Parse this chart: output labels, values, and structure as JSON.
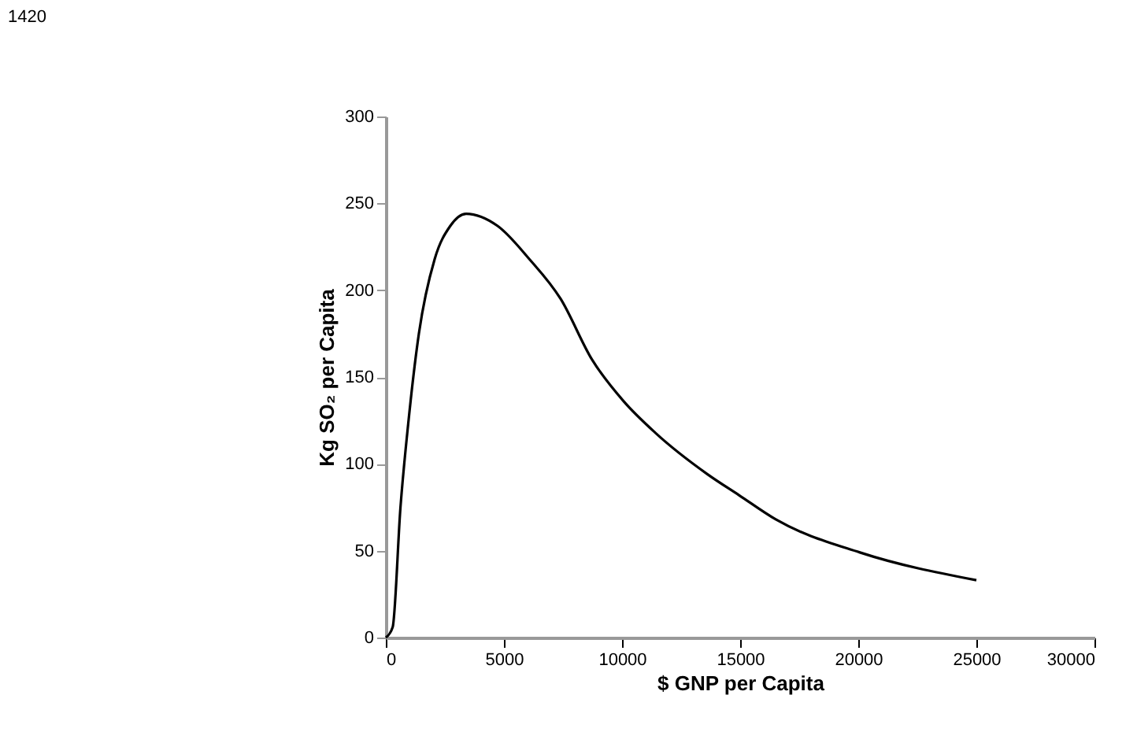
{
  "chart_data": {
    "type": "line",
    "xlabel": "$ GNP per Capita",
    "ylabel": "Kg SO₂ per Capita",
    "annotations": [
      "1420"
    ],
    "x": [
      0,
      290,
      620,
      955,
      1400,
      2070,
      2730,
      3400,
      4730,
      6070,
      7400,
      8730,
      10070,
      11400,
      13620,
      14950,
      16510,
      20070,
      25000
    ],
    "series": [
      {
        "color": "#000000",
        "values": [
          0,
          6,
          75,
          124,
          175,
          218,
          237,
          244,
          237,
          218,
          195,
          160,
          136,
          118,
          94,
          82,
          68,
          49,
          33
        ]
      }
    ],
    "xlim": [
      0,
      30000
    ],
    "xticks": [
      0,
      5000,
      10000,
      15000,
      20000,
      25000,
      30000
    ],
    "ylim": [
      0,
      300
    ],
    "yticks": [
      0,
      50,
      100,
      150,
      200,
      250,
      300
    ],
    "grid": false,
    "marker": "none",
    "line_style": "solid"
  }
}
